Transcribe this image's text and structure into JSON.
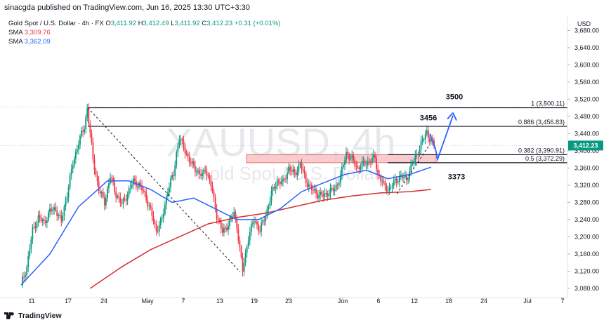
{
  "header": {
    "published": "sinacgda published on TradingView.com, Jun 16, 2025 13:30 UTC+3:30",
    "symbol_line": "Gold Spot / U.S. Dollar · 4h · FX",
    "o_label": "O",
    "o_value": "3,411.92",
    "h_label": "H",
    "h_value": "3,412.49",
    "l_label": "L",
    "l_value": "3,411.92",
    "c_label": "C",
    "c_value": "3,412.23",
    "change": "+0.31 (+0.01%)",
    "sma1_label": "SMA",
    "sma1_value": "3,309.76",
    "sma2_label": "SMA",
    "sma2_value": "3,362.09"
  },
  "watermark": {
    "symbol": "XAUUSD, 4h",
    "name": "Gold Spot / U.S. Dollar"
  },
  "footer": {
    "brand": "TradingView"
  },
  "colors": {
    "up": "#089981",
    "down": "#f23645",
    "sma_fast": "#2962ff",
    "sma_slow": "#d32f2f",
    "zone": "#f7b5b9",
    "zone_border": "#e57373",
    "arrow": "#2962ff"
  },
  "chart_data": {
    "type": "candlestick",
    "currency": "USD",
    "ylim": [
      3062,
      3705
    ],
    "yticks": [
      "3,680.00",
      "3,640.00",
      "3,600.00",
      "3,560.00",
      "3,520.00",
      "3,480.00",
      "3,440.00",
      "3,400.00",
      "3,360.00",
      "3,320.00",
      "3,280.00",
      "3,240.00",
      "3,200.00",
      "3,160.00",
      "3,120.00",
      "3,080.00"
    ],
    "ytick_values": [
      3680,
      3640,
      3600,
      3560,
      3520,
      3480,
      3440,
      3400,
      3360,
      3320,
      3280,
      3240,
      3200,
      3160,
      3120,
      3080
    ],
    "xticks": [
      "11",
      "17",
      "24",
      "May",
      "7",
      "13",
      "19",
      "23",
      "Jun",
      "6",
      "12",
      "18",
      "24",
      "Jul",
      "7"
    ],
    "last_price": "3,412.23",
    "last_price_value": 3412.23,
    "price_path": [
      [
        0,
        3088
      ],
      [
        4,
        3130
      ],
      [
        8,
        3215
      ],
      [
        12,
        3245
      ],
      [
        16,
        3232
      ],
      [
        20,
        3260
      ],
      [
        24,
        3265
      ],
      [
        28,
        3235
      ],
      [
        32,
        3300
      ],
      [
        36,
        3370
      ],
      [
        40,
        3420
      ],
      [
        44,
        3455
      ],
      [
        46,
        3500
      ],
      [
        50,
        3380
      ],
      [
        54,
        3310
      ],
      [
        58,
        3280
      ],
      [
        62,
        3340
      ],
      [
        66,
        3300
      ],
      [
        70,
        3275
      ],
      [
        74,
        3300
      ],
      [
        78,
        3330
      ],
      [
        82,
        3320
      ],
      [
        86,
        3300
      ],
      [
        90,
        3260
      ],
      [
        94,
        3215
      ],
      [
        98,
        3240
      ],
      [
        102,
        3310
      ],
      [
        106,
        3345
      ],
      [
        108,
        3395
      ],
      [
        110,
        3430
      ],
      [
        114,
        3400
      ],
      [
        118,
        3370
      ],
      [
        122,
        3355
      ],
      [
        126,
        3340
      ],
      [
        128,
        3360
      ],
      [
        132,
        3320
      ],
      [
        136,
        3250
      ],
      [
        140,
        3210
      ],
      [
        144,
        3230
      ],
      [
        148,
        3255
      ],
      [
        150,
        3225
      ],
      [
        154,
        3120
      ],
      [
        158,
        3200
      ],
      [
        162,
        3240
      ],
      [
        166,
        3215
      ],
      [
        170,
        3250
      ],
      [
        174,
        3300
      ],
      [
        178,
        3330
      ],
      [
        182,
        3325
      ],
      [
        186,
        3360
      ],
      [
        190,
        3345
      ],
      [
        194,
        3370
      ],
      [
        198,
        3330
      ],
      [
        202,
        3310
      ],
      [
        206,
        3300
      ],
      [
        210,
        3295
      ],
      [
        214,
        3305
      ],
      [
        218,
        3310
      ],
      [
        222,
        3340
      ],
      [
        226,
        3395
      ],
      [
        230,
        3380
      ],
      [
        234,
        3360
      ],
      [
        238,
        3370
      ],
      [
        242,
        3375
      ],
      [
        246,
        3385
      ],
      [
        248,
        3345
      ],
      [
        252,
        3320
      ],
      [
        256,
        3310
      ],
      [
        260,
        3330
      ],
      [
        264,
        3340
      ],
      [
        268,
        3335
      ],
      [
        272,
        3370
      ],
      [
        276,
        3400
      ],
      [
        280,
        3430
      ],
      [
        282,
        3445
      ],
      [
        285,
        3420
      ],
      [
        287,
        3412
      ]
    ],
    "sma_fast": [
      [
        0,
        3088
      ],
      [
        20,
        3160
      ],
      [
        40,
        3270
      ],
      [
        60,
        3330
      ],
      [
        75,
        3330
      ],
      [
        90,
        3310
      ],
      [
        105,
        3280
      ],
      [
        120,
        3290
      ],
      [
        135,
        3265
      ],
      [
        150,
        3240
      ],
      [
        165,
        3240
      ],
      [
        180,
        3265
      ],
      [
        195,
        3305
      ],
      [
        210,
        3325
      ],
      [
        225,
        3345
      ],
      [
        240,
        3355
      ],
      [
        255,
        3335
      ],
      [
        270,
        3345
      ],
      [
        285,
        3362
      ]
    ],
    "sma_slow": [
      [
        48,
        3080
      ],
      [
        70,
        3130
      ],
      [
        90,
        3170
      ],
      [
        110,
        3200
      ],
      [
        130,
        3230
      ],
      [
        150,
        3245
      ],
      [
        170,
        3255
      ],
      [
        190,
        3270
      ],
      [
        210,
        3285
      ],
      [
        230,
        3295
      ],
      [
        250,
        3302
      ],
      [
        270,
        3305
      ],
      [
        285,
        3310
      ]
    ],
    "fib_levels": [
      {
        "label": "1 (3,500.11)",
        "value": 3500.11
      },
      {
        "label": "0.886 (3,456.83)",
        "value": 3456.83
      },
      {
        "label": "0.382 (3,390.91)",
        "value": 3390.91
      },
      {
        "label": "0.5 (3,372.29)",
        "value": 3372.29
      }
    ],
    "zone": {
      "low": 3372.29,
      "high": 3390.91
    },
    "annotations": [
      {
        "text": "3500",
        "value": 3500
      },
      {
        "text": "3456",
        "value": 3456
      },
      {
        "text": "3373",
        "value": 3373
      }
    ],
    "trendline": {
      "from": [
        46,
        3500
      ],
      "to": [
        155,
        3118
      ]
    },
    "projection": [
      [
        283,
        3440
      ],
      [
        287,
        3405
      ],
      [
        290,
        3372
      ],
      [
        300,
        3480
      ]
    ],
    "grid": false
  }
}
